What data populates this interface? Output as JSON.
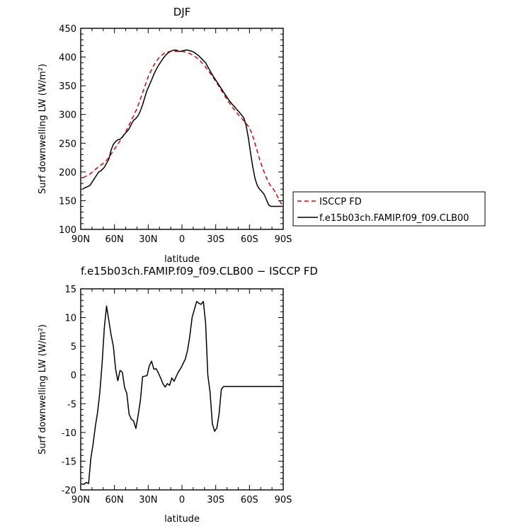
{
  "chart_data": [
    {
      "type": "line",
      "title": "DJF",
      "xlabel": "latitude",
      "ylabel": "Surf downwelling LW (W/m²)",
      "xlim": [
        -90,
        90
      ],
      "ylim": [
        100,
        450
      ],
      "x_tick_labels": [
        "90N",
        "60N",
        "30N",
        "0",
        "30S",
        "60S",
        "90S"
      ],
      "y_tick_labels": [
        "100",
        "150",
        "200",
        "250",
        "300",
        "350",
        "400",
        "450"
      ],
      "x_note": "x in degrees latitude, negative = N, positive = S",
      "legend_position": "right, outside the plot",
      "series": [
        {
          "name": "ISCCP FD",
          "color": "#e00000",
          "style": "dashed",
          "x": [
            -88,
            -82,
            -76,
            -72,
            -68,
            -64,
            -60,
            -55,
            -50,
            -45,
            -40,
            -35,
            -30,
            -25,
            -20,
            -15,
            -10,
            -5,
            0,
            5,
            10,
            15,
            20,
            25,
            30,
            35,
            40,
            45,
            50,
            55,
            60,
            63,
            66,
            69,
            72,
            75,
            78,
            82,
            86,
            89
          ],
          "y": [
            190,
            196,
            206,
            212,
            218,
            228,
            240,
            254,
            270,
            290,
            310,
            338,
            366,
            386,
            400,
            408,
            410,
            410,
            410,
            408,
            403,
            396,
            385,
            372,
            358,
            342,
            326,
            312,
            300,
            289,
            277,
            262,
            242,
            222,
            205,
            190,
            178,
            168,
            153,
            142
          ]
        },
        {
          "name": "f.e15b03ch.FAMIP.f09_f09.CLB00",
          "color": "#000000",
          "style": "solid",
          "x": [
            -88,
            -82,
            -78,
            -74,
            -72,
            -69,
            -67,
            -65,
            -63,
            -61,
            -59,
            -57,
            -55,
            -53,
            -51,
            -49,
            -47,
            -45,
            -43,
            -41,
            -39,
            -37,
            -35,
            -33,
            -31,
            -29,
            -27,
            -25,
            -23,
            -21,
            -19,
            -17,
            -15,
            -13,
            -11,
            -9,
            -7,
            -5,
            -3,
            -1,
            1,
            3,
            5,
            7,
            9,
            11,
            13,
            15,
            17,
            19,
            21,
            23,
            25,
            27,
            29,
            31,
            33,
            35,
            37,
            39,
            41,
            43,
            45,
            47,
            49,
            51,
            53,
            55,
            57,
            59,
            61,
            63,
            65,
            67,
            69,
            71,
            73,
            75,
            77,
            79,
            81,
            83,
            85,
            87,
            89
          ],
          "y": [
            171,
            176,
            188,
            200,
            202,
            208,
            215,
            222,
            238,
            248,
            253,
            256,
            257,
            261,
            266,
            270,
            275,
            283,
            290,
            293,
            298,
            306,
            317,
            330,
            342,
            351,
            360,
            370,
            378,
            385,
            391,
            397,
            402,
            406,
            409,
            411,
            412,
            412,
            410,
            410,
            411,
            412,
            412,
            411,
            410,
            408,
            405,
            402,
            398,
            394,
            390,
            383,
            376,
            369,
            363,
            357,
            351,
            345,
            339,
            333,
            327,
            322,
            317,
            313,
            308,
            304,
            299,
            294,
            281,
            260,
            233,
            208,
            188,
            176,
            170,
            166,
            161,
            152,
            143,
            140,
            140,
            140,
            140,
            140,
            140
          ]
        }
      ]
    },
    {
      "type": "line",
      "title": "f.e15b03ch.FAMIP.f09_f09.CLB00 − ISCCP FD",
      "xlabel": "latitude",
      "ylabel": "Surf downwelling LW (W/m²)",
      "xlim": [
        -90,
        90
      ],
      "ylim": [
        -20,
        15
      ],
      "x_tick_labels": [
        "90N",
        "60N",
        "30N",
        "0",
        "30S",
        "60S",
        "90S"
      ],
      "y_tick_labels": [
        "-20",
        "-15",
        "-10",
        "-5",
        "0",
        "5",
        "10",
        "15"
      ],
      "series": [
        {
          "color": "#000000",
          "style": "solid",
          "x": [
            -89,
            -87,
            -85,
            -83,
            -81,
            -79,
            -77,
            -75,
            -73,
            -71,
            -69,
            -67,
            -65,
            -63,
            -61,
            -59,
            -57,
            -55,
            -53,
            -51,
            -49,
            -47,
            -45,
            -43,
            -41,
            -39,
            -37,
            -35,
            -33,
            -31,
            -29,
            -27,
            -25,
            -23,
            -21,
            -19,
            -17,
            -15,
            -13,
            -11,
            -9,
            -7,
            -5,
            -3,
            -1,
            1,
            3,
            5,
            7,
            9,
            11,
            13,
            15,
            17,
            19,
            21,
            23,
            25,
            27,
            29,
            31,
            33,
            35,
            37,
            39,
            41,
            43,
            45,
            47,
            49,
            51,
            53,
            55,
            57,
            59,
            61,
            63,
            65,
            67,
            69,
            71,
            73,
            75,
            77,
            79,
            81,
            83,
            85,
            87,
            89
          ],
          "y": [
            -19,
            -19,
            -18.7,
            -18.9,
            -14.5,
            -12,
            -8.9,
            -6.5,
            -3,
            2,
            8.3,
            12,
            9.5,
            7,
            5,
            1,
            -1,
            0.8,
            0.5,
            -2.2,
            -3.2,
            -6.8,
            -7.7,
            -8,
            -9.3,
            -7.1,
            -4.5,
            -0.3,
            -0.2,
            -0.1,
            1.6,
            2.4,
            1,
            1.1,
            0.4,
            -0.5,
            -1.5,
            -2.1,
            -1.5,
            -1.8,
            -0.5,
            -1.1,
            -0.2,
            0.6,
            1.2,
            2,
            2.8,
            4.3,
            6.8,
            10,
            11.4,
            12.8,
            12.5,
            12.3,
            12.8,
            9,
            0,
            -3,
            -8.5,
            -9.8,
            -9.2,
            -6.8,
            -2.5,
            -2,
            -2,
            -2,
            -2,
            -2,
            -2,
            -2,
            -2,
            -2,
            -2,
            -2,
            -2,
            -2,
            -2,
            -2,
            -2,
            -2,
            -2,
            -2,
            -2,
            -2,
            -2,
            -2,
            -2,
            -2,
            -2,
            -2
          ]
        }
      ]
    }
  ],
  "legend": {
    "items": [
      {
        "label": "ISCCP FD"
      },
      {
        "label": "f.e15b03ch.FAMIP.f09_f09.CLB00"
      }
    ]
  }
}
